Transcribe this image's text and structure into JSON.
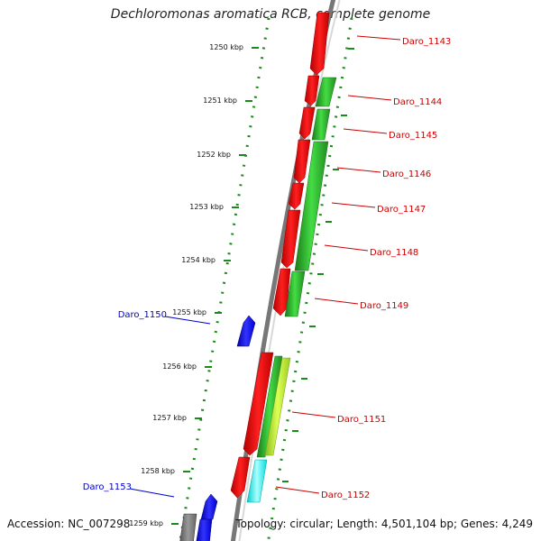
{
  "title": "Dechloromonas aromatica RCB, complete genome",
  "footer": {
    "accession": "Accession: NC_007298",
    "summary": "Topology: circular; Length: 4,501,104 bp; Genes: 4,249"
  },
  "scale_labels": [
    "1250 kbp",
    "1251 kbp",
    "1252 kbp",
    "1253 kbp",
    "1254 kbp",
    "1255 kbp",
    "1256 kbp",
    "1257 kbp",
    "1258 kbp",
    "1259 kbp"
  ],
  "genes_right": [
    "Daro_1143",
    "Daro_1144",
    "Daro_1145",
    "Daro_1146",
    "Daro_1147",
    "Daro_1148",
    "Daro_1149",
    "Daro_1151",
    "Daro_1152"
  ],
  "genes_left": [
    "Daro_1150",
    "Daro_1153"
  ],
  "colors": {
    "forward_cds": "#ff0000",
    "cog_green": "#33cc33",
    "cog_dark_green": "#228b22",
    "cog_yellow_green": "#ccff33",
    "cog_cyan": "#00ffff",
    "reverse_cds": "#0000ff",
    "backbone": "#888888",
    "tick_green": "#1a8a1a",
    "label_red": "#cc0000",
    "label_blue": "#0000cc"
  }
}
